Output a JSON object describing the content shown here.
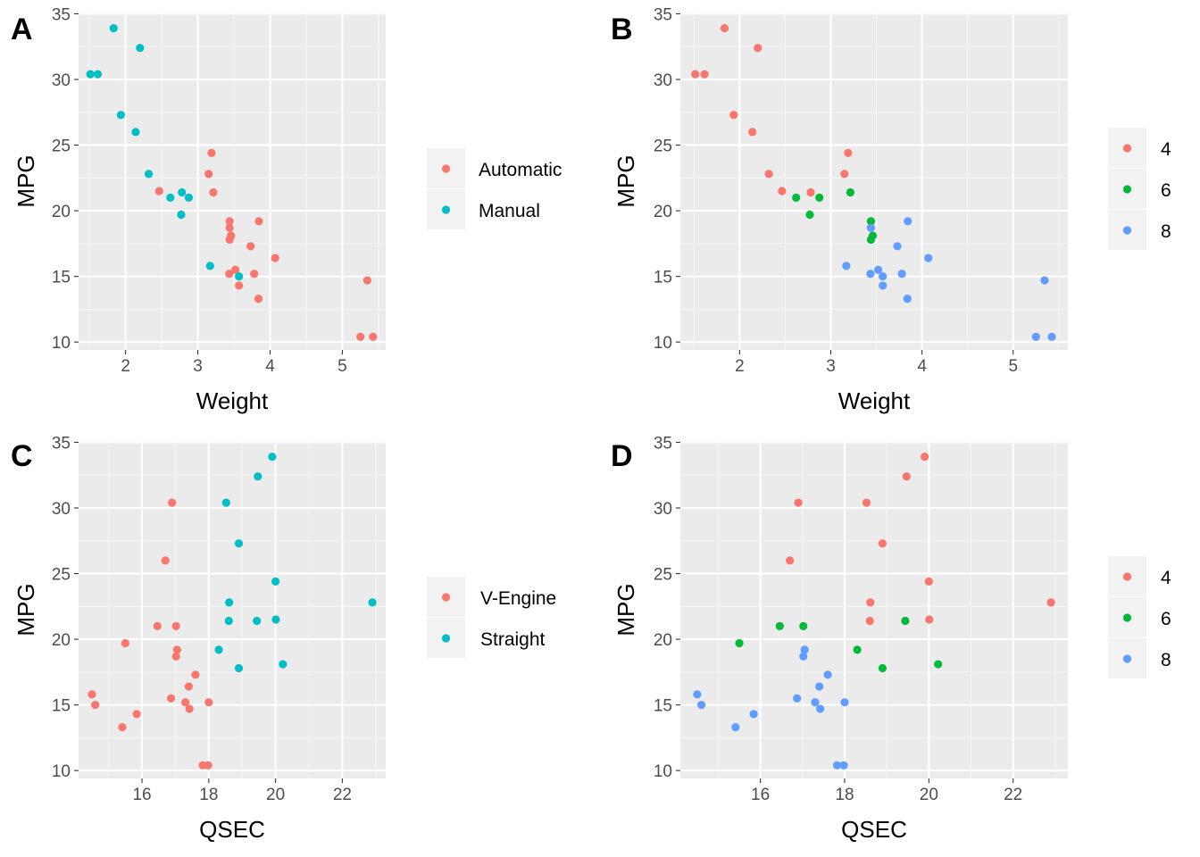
{
  "colors": {
    "panel_bg": "#EBEBEB",
    "grid_major": "#FFFFFF",
    "grid_minor": "#F5F5F5",
    "tick_text": "#4D4D4D",
    "title_text": "#000000",
    "legend_key_bg": "#F2F2F2"
  },
  "chart_data": [
    {
      "type": "scatter",
      "tag": "A",
      "xlabel": "Weight",
      "ylabel": "MPG",
      "xlim": [
        1.35,
        5.6
      ],
      "ylim": [
        9.4,
        35.1
      ],
      "xticks": [
        2,
        3,
        4,
        5
      ],
      "yticks": [
        10,
        15,
        20,
        25,
        30,
        35
      ],
      "legend": "right",
      "series": [
        {
          "name": "Automatic",
          "color": "#F8766D",
          "points": [
            [
              3.215,
              21.4
            ],
            [
              3.44,
              18.7
            ],
            [
              3.46,
              18.1
            ],
            [
              3.57,
              14.3
            ],
            [
              3.19,
              24.4
            ],
            [
              3.15,
              22.8
            ],
            [
              3.44,
              19.2
            ],
            [
              3.44,
              17.8
            ],
            [
              4.07,
              16.4
            ],
            [
              3.73,
              17.3
            ],
            [
              3.78,
              15.2
            ],
            [
              5.25,
              10.4
            ],
            [
              5.424,
              10.4
            ],
            [
              5.345,
              14.7
            ],
            [
              2.465,
              21.5
            ],
            [
              3.52,
              15.5
            ],
            [
              3.435,
              15.2
            ],
            [
              3.84,
              13.3
            ],
            [
              3.845,
              19.2
            ]
          ]
        },
        {
          "name": "Manual",
          "color": "#00BFC4",
          "points": [
            [
              2.62,
              21.0
            ],
            [
              2.875,
              21.0
            ],
            [
              2.32,
              22.8
            ],
            [
              2.2,
              32.4
            ],
            [
              1.615,
              30.4
            ],
            [
              1.835,
              33.9
            ],
            [
              1.935,
              27.3
            ],
            [
              2.14,
              26.0
            ],
            [
              1.513,
              30.4
            ],
            [
              3.17,
              15.8
            ],
            [
              2.77,
              19.7
            ],
            [
              3.57,
              15.0
            ],
            [
              2.78,
              21.4
            ]
          ]
        }
      ]
    },
    {
      "type": "scatter",
      "tag": "B",
      "xlabel": "Weight",
      "ylabel": "MPG",
      "xlim": [
        1.35,
        5.6
      ],
      "ylim": [
        9.4,
        35.1
      ],
      "xticks": [
        2,
        3,
        4,
        5
      ],
      "yticks": [
        10,
        15,
        20,
        25,
        30,
        35
      ],
      "legend": "right",
      "series": [
        {
          "name": "4",
          "color": "#F8766D",
          "points": [
            [
              2.32,
              22.8
            ],
            [
              3.19,
              24.4
            ],
            [
              3.15,
              22.8
            ],
            [
              2.2,
              32.4
            ],
            [
              1.615,
              30.4
            ],
            [
              1.835,
              33.9
            ],
            [
              2.465,
              21.5
            ],
            [
              1.935,
              27.3
            ],
            [
              2.14,
              26.0
            ],
            [
              1.513,
              30.4
            ],
            [
              2.78,
              21.4
            ]
          ]
        },
        {
          "name": "6",
          "color": "#00BA38",
          "points": [
            [
              2.62,
              21.0
            ],
            [
              2.875,
              21.0
            ],
            [
              3.215,
              21.4
            ],
            [
              3.46,
              18.1
            ],
            [
              3.44,
              19.2
            ],
            [
              3.44,
              17.8
            ],
            [
              2.77,
              19.7
            ]
          ]
        },
        {
          "name": "8",
          "color": "#619CFF",
          "points": [
            [
              3.44,
              18.7
            ],
            [
              3.57,
              14.3
            ],
            [
              4.07,
              16.4
            ],
            [
              3.73,
              17.3
            ],
            [
              3.78,
              15.2
            ],
            [
              5.25,
              10.4
            ],
            [
              5.424,
              10.4
            ],
            [
              5.345,
              14.7
            ],
            [
              3.52,
              15.5
            ],
            [
              3.435,
              15.2
            ],
            [
              3.84,
              13.3
            ],
            [
              3.845,
              19.2
            ],
            [
              3.17,
              15.8
            ],
            [
              3.57,
              15.0
            ]
          ]
        }
      ]
    },
    {
      "type": "scatter",
      "tag": "C",
      "xlabel": "QSEC",
      "ylabel": "MPG",
      "xlim": [
        14.1,
        23.3
      ],
      "ylim": [
        9.4,
        35.1
      ],
      "xticks": [
        16,
        18,
        20,
        22
      ],
      "yticks": [
        10,
        15,
        20,
        25,
        30,
        35
      ],
      "legend": "right",
      "series": [
        {
          "name": "V-Engine",
          "color": "#F8766D",
          "points": [
            [
              16.46,
              21.0
            ],
            [
              17.02,
              21.0
            ],
            [
              17.02,
              18.7
            ],
            [
              15.84,
              14.3
            ],
            [
              17.4,
              16.4
            ],
            [
              17.6,
              17.3
            ],
            [
              18.0,
              15.2
            ],
            [
              17.98,
              10.4
            ],
            [
              17.82,
              10.4
            ],
            [
              17.42,
              14.7
            ],
            [
              16.87,
              15.5
            ],
            [
              17.3,
              15.2
            ],
            [
              15.41,
              13.3
            ],
            [
              17.05,
              19.2
            ],
            [
              16.7,
              26.0
            ],
            [
              16.9,
              30.4
            ],
            [
              14.5,
              15.8
            ],
            [
              15.5,
              19.7
            ],
            [
              14.6,
              15.0
            ]
          ]
        },
        {
          "name": "Straight",
          "color": "#00BFC4",
          "points": [
            [
              18.61,
              22.8
            ],
            [
              19.44,
              21.4
            ],
            [
              20.22,
              18.1
            ],
            [
              20.0,
              24.4
            ],
            [
              22.9,
              22.8
            ],
            [
              18.3,
              19.2
            ],
            [
              18.9,
              17.8
            ],
            [
              19.47,
              32.4
            ],
            [
              18.52,
              30.4
            ],
            [
              19.9,
              33.9
            ],
            [
              20.01,
              21.5
            ],
            [
              18.9,
              27.3
            ],
            [
              18.6,
              21.4
            ]
          ]
        }
      ]
    },
    {
      "type": "scatter",
      "tag": "D",
      "xlabel": "QSEC",
      "ylabel": "MPG",
      "xlim": [
        14.1,
        23.3
      ],
      "ylim": [
        9.4,
        35.1
      ],
      "xticks": [
        16,
        18,
        20,
        22
      ],
      "yticks": [
        10,
        15,
        20,
        25,
        30,
        35
      ],
      "legend": "right",
      "series": [
        {
          "name": "4",
          "color": "#F8766D",
          "points": [
            [
              18.61,
              22.8
            ],
            [
              20.0,
              24.4
            ],
            [
              22.9,
              22.8
            ],
            [
              19.47,
              32.4
            ],
            [
              18.52,
              30.4
            ],
            [
              19.9,
              33.9
            ],
            [
              20.01,
              21.5
            ],
            [
              18.9,
              27.3
            ],
            [
              16.7,
              26.0
            ],
            [
              16.9,
              30.4
            ],
            [
              18.6,
              21.4
            ]
          ]
        },
        {
          "name": "6",
          "color": "#00BA38",
          "points": [
            [
              16.46,
              21.0
            ],
            [
              17.02,
              21.0
            ],
            [
              19.44,
              21.4
            ],
            [
              20.22,
              18.1
            ],
            [
              18.3,
              19.2
            ],
            [
              18.9,
              17.8
            ],
            [
              15.5,
              19.7
            ]
          ]
        },
        {
          "name": "8",
          "color": "#619CFF",
          "points": [
            [
              17.02,
              18.7
            ],
            [
              15.84,
              14.3
            ],
            [
              17.4,
              16.4
            ],
            [
              17.6,
              17.3
            ],
            [
              18.0,
              15.2
            ],
            [
              17.98,
              10.4
            ],
            [
              17.82,
              10.4
            ],
            [
              17.42,
              14.7
            ],
            [
              16.87,
              15.5
            ],
            [
              17.3,
              15.2
            ],
            [
              15.41,
              13.3
            ],
            [
              17.05,
              19.2
            ],
            [
              14.5,
              15.8
            ],
            [
              14.6,
              15.0
            ]
          ]
        }
      ]
    }
  ]
}
